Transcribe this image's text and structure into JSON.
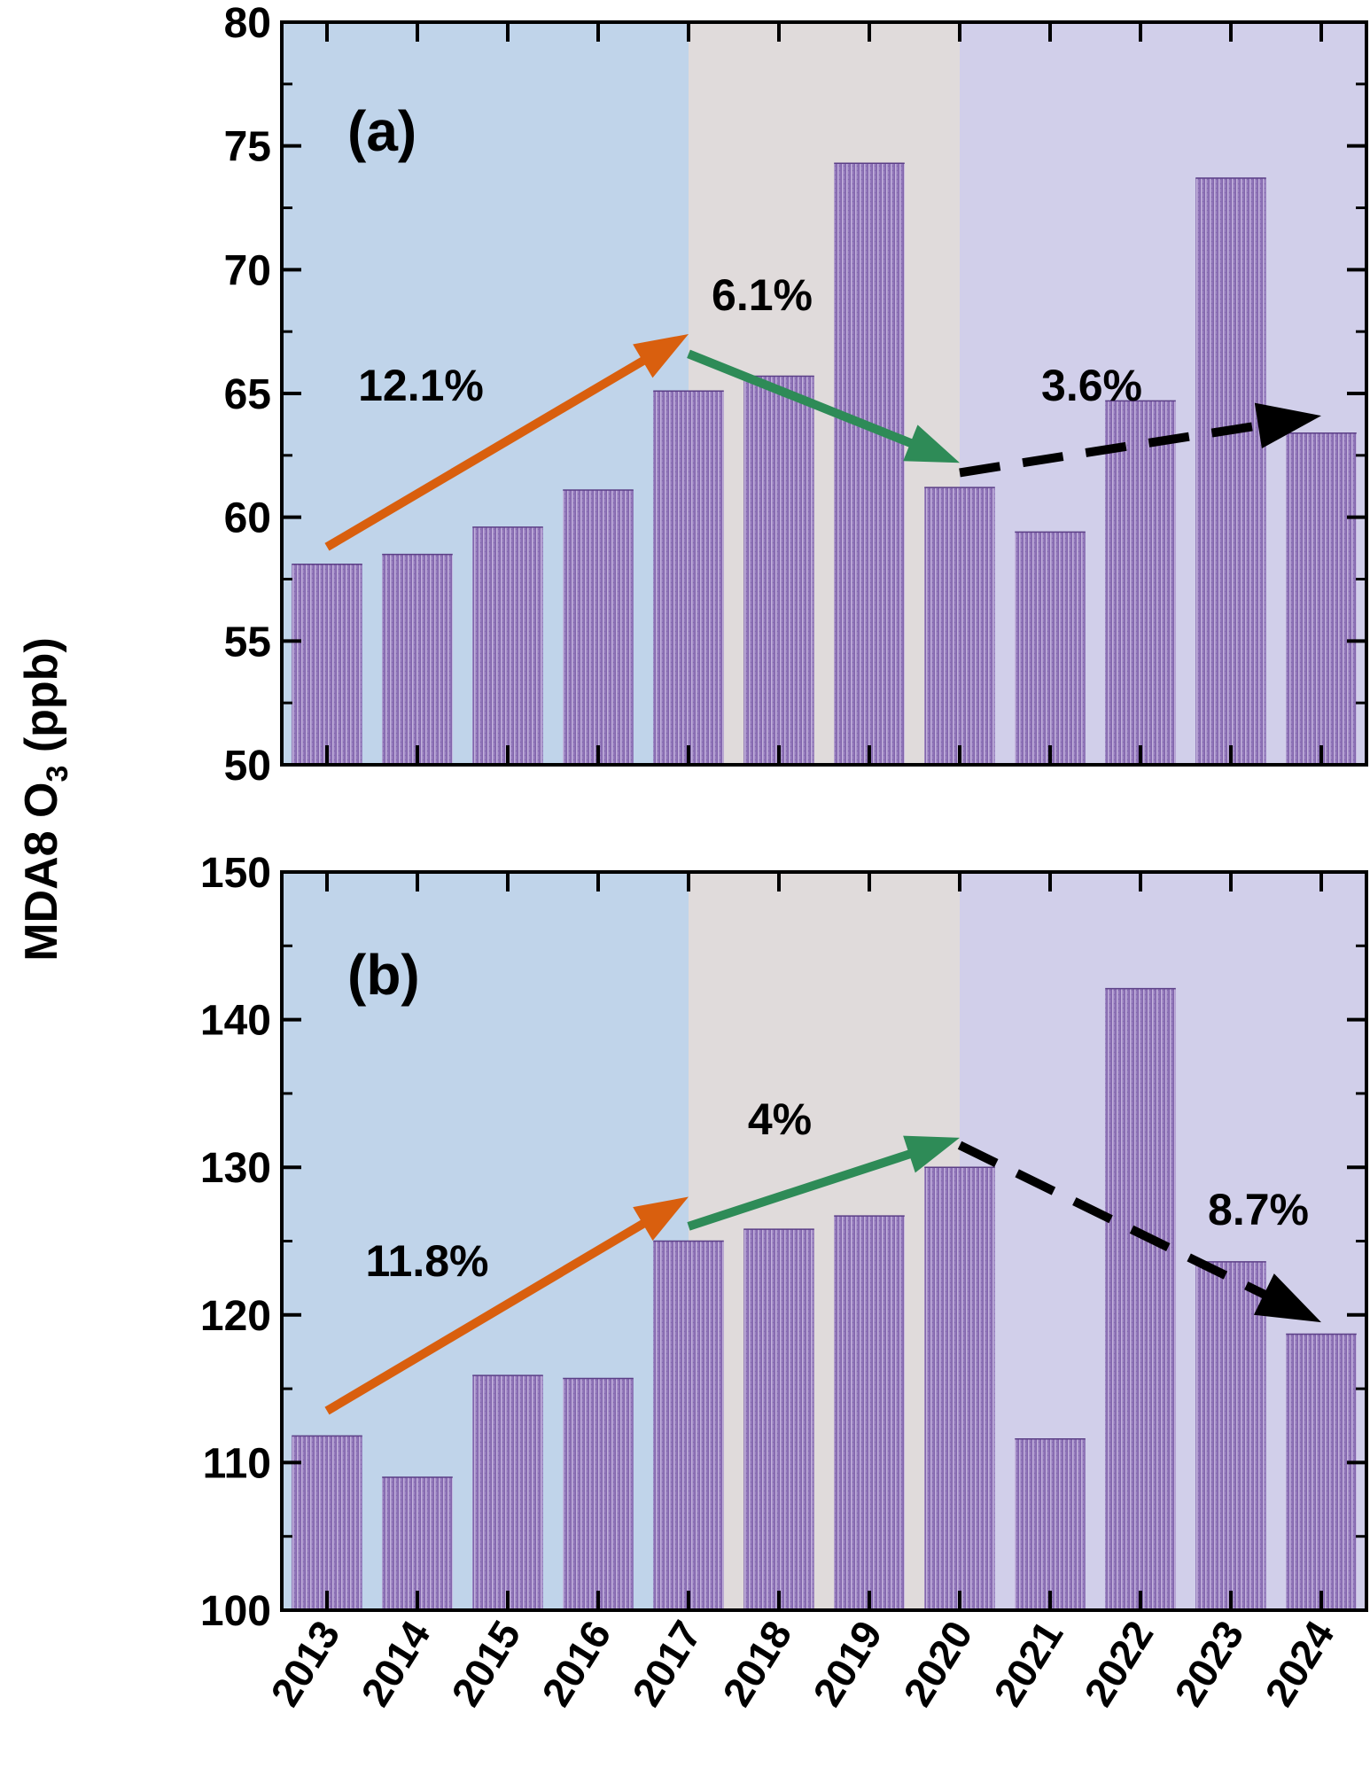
{
  "figure": {
    "ylabel_prefix": "MDA8 O",
    "ylabel_sub": "3",
    "ylabel_suffix": " (ppb)"
  },
  "colors": {
    "period1_bg": "#c0d4ea",
    "period2_bg": "#e0dbdb",
    "period3_bg": "#d1cfea",
    "bar_edge": "#7d5fa8",
    "bar_center": "#9b82c2",
    "bar_light": "#cdbfe2",
    "arrow_orange": "#d95f0e",
    "arrow_green": "#2e8b57",
    "arrow_black": "#000000"
  },
  "chart_data": [
    {
      "type": "bar",
      "panel_label": "(a)",
      "categories": [
        "2013",
        "2014",
        "2015",
        "2016",
        "2017",
        "2018",
        "2019",
        "2020",
        "2021",
        "2022",
        "2023",
        "2024"
      ],
      "values": [
        58.1,
        58.5,
        59.6,
        61.1,
        65.1,
        65.7,
        74.3,
        61.2,
        59.4,
        64.7,
        73.7,
        63.4
      ],
      "ylim": [
        50,
        80
      ],
      "yticks": [
        50,
        55,
        60,
        65,
        70,
        75,
        80
      ],
      "grid": false,
      "period_shading": [
        {
          "from": "2013",
          "to": "2017",
          "color_key": "period1_bg"
        },
        {
          "from": "2017",
          "to": "2020",
          "color_key": "period2_bg"
        },
        {
          "from": "2020",
          "to": "2024",
          "color_key": "period3_bg"
        }
      ],
      "trend_arrows": [
        {
          "label": "12.1%",
          "color_key": "arrow_orange",
          "style": "solid",
          "from": [
            "2013",
            58.8
          ],
          "to": [
            "2017",
            67.4
          ]
        },
        {
          "label": "6.1%",
          "color_key": "arrow_green",
          "style": "solid",
          "from": [
            "2017",
            66.6
          ],
          "to": [
            "2020",
            62.2
          ]
        },
        {
          "label": "3.6%",
          "color_key": "arrow_black",
          "style": "dashed",
          "from": [
            "2020",
            61.8
          ],
          "to": [
            "2024",
            64.1
          ]
        }
      ]
    },
    {
      "type": "bar",
      "panel_label": "(b)",
      "categories": [
        "2013",
        "2014",
        "2015",
        "2016",
        "2017",
        "2018",
        "2019",
        "2020",
        "2021",
        "2022",
        "2023",
        "2024"
      ],
      "values": [
        111.8,
        109.0,
        115.9,
        115.7,
        125.0,
        125.8,
        126.7,
        130.0,
        111.6,
        142.1,
        123.6,
        118.7
      ],
      "ylim": [
        100,
        150
      ],
      "yticks": [
        100,
        110,
        120,
        130,
        140,
        150
      ],
      "grid": false,
      "period_shading": [
        {
          "from": "2013",
          "to": "2017",
          "color_key": "period1_bg"
        },
        {
          "from": "2017",
          "to": "2020",
          "color_key": "period2_bg"
        },
        {
          "from": "2020",
          "to": "2024",
          "color_key": "period3_bg"
        }
      ],
      "trend_arrows": [
        {
          "label": "11.8%",
          "color_key": "arrow_orange",
          "style": "solid",
          "from": [
            "2013",
            113.5
          ],
          "to": [
            "2017",
            128.0
          ]
        },
        {
          "label": "4%",
          "color_key": "arrow_green",
          "style": "solid",
          "from": [
            "2017",
            126.0
          ],
          "to": [
            "2020",
            132.0
          ]
        },
        {
          "label": "8.7%",
          "color_key": "arrow_black",
          "style": "dashed",
          "from": [
            "2020",
            131.5
          ],
          "to": [
            "2024",
            119.5
          ]
        }
      ]
    }
  ]
}
